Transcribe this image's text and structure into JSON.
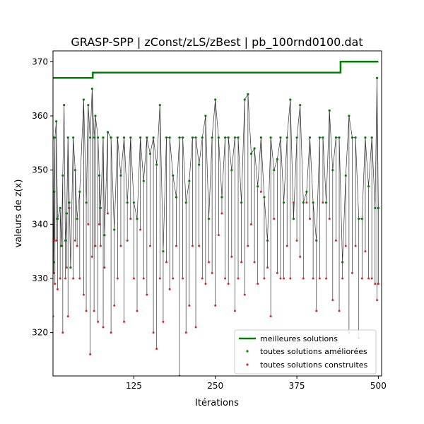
{
  "chart_data": {
    "type": "scatter",
    "title": "GRASP-SPP | zConst/zLS/zBest | pb_100rnd0100.dat",
    "xlabel": "Itérations",
    "ylabel": "valeurs de z(x)",
    "xlim": [
      1,
      505
    ],
    "ylim": [
      312,
      372
    ],
    "xticks": [
      125,
      250,
      375,
      500
    ],
    "yticks": [
      320,
      330,
      340,
      350,
      360,
      370
    ],
    "legend": {
      "position": "bottom-right",
      "entries": [
        {
          "label": "meilleures solutions",
          "color": "#008000",
          "kind": "line"
        },
        {
          "label": "toutes solutions améliorées",
          "color": "#008000",
          "kind": "dot"
        },
        {
          "label": "toutes solutions construites",
          "color": "#d62728",
          "kind": "dot"
        }
      ]
    },
    "series": [
      {
        "name": "meilleures solutions",
        "kind": "step",
        "color": "#008000",
        "x": [
          1,
          62,
          62,
          442,
          442,
          500
        ],
        "y": [
          367,
          367,
          368,
          368,
          370,
          370
        ]
      },
      {
        "name": "toutes solutions améliorées",
        "kind": "dot",
        "color": "#008000",
        "x": [
          1,
          2,
          3,
          4,
          6,
          8,
          12,
          14,
          16,
          18,
          20,
          22,
          24,
          26,
          28,
          32,
          35,
          38,
          42,
          48,
          52,
          55,
          58,
          61,
          64,
          66,
          70,
          72,
          74,
          78,
          80,
          85,
          90,
          95,
          100,
          105,
          110,
          115,
          120,
          125,
          130,
          135,
          140,
          145,
          150,
          155,
          160,
          165,
          170,
          175,
          180,
          185,
          190,
          195,
          200,
          205,
          210,
          215,
          220,
          225,
          230,
          235,
          240,
          245,
          250,
          255,
          260,
          265,
          270,
          275,
          280,
          285,
          290,
          295,
          300,
          305,
          310,
          315,
          320,
          325,
          330,
          335,
          340,
          345,
          350,
          355,
          360,
          365,
          370,
          375,
          380,
          385,
          390,
          395,
          400,
          405,
          410,
          415,
          420,
          425,
          430,
          435,
          440,
          445,
          450,
          455,
          460,
          465,
          470,
          475,
          480,
          485,
          490,
          495,
          498,
          500
        ],
        "y": [
          356,
          333,
          346,
          356,
          359,
          341,
          343,
          336,
          349,
          362,
          337,
          342,
          356,
          344,
          332,
          356,
          350,
          341,
          346,
          363,
          344,
          362,
          356,
          365,
          356,
          360,
          356,
          349,
          343,
          356,
          338,
          357,
          356,
          339,
          356,
          349,
          356,
          344,
          356,
          344,
          341,
          356,
          348,
          356,
          353,
          356,
          351,
          362,
          335,
          356,
          356,
          349,
          345,
          356,
          356,
          344,
          348,
          356,
          356,
          351,
          356,
          360,
          341,
          356,
          363,
          356,
          345,
          356,
          356,
          350,
          356,
          356,
          344,
          363,
          364,
          353,
          354,
          347,
          356,
          345,
          337,
          356,
          350,
          352,
          356,
          344,
          356,
          363,
          341,
          356,
          362,
          344,
          346,
          356,
          344,
          337,
          356,
          356,
          344,
          361,
          350,
          356,
          356,
          333,
          349,
          360,
          356,
          356,
          341,
          341,
          356,
          347,
          356,
          343,
          367,
          343
        ]
      },
      {
        "name": "toutes solutions construites",
        "kind": "dot",
        "color": "#d62728",
        "x": [
          1,
          2,
          3,
          4,
          6,
          8,
          12,
          14,
          16,
          18,
          20,
          22,
          24,
          26,
          28,
          32,
          35,
          38,
          42,
          48,
          52,
          55,
          58,
          61,
          64,
          66,
          70,
          72,
          74,
          78,
          80,
          85,
          90,
          95,
          100,
          105,
          110,
          115,
          120,
          125,
          130,
          135,
          140,
          145,
          150,
          155,
          160,
          165,
          170,
          175,
          180,
          185,
          190,
          195,
          200,
          205,
          210,
          215,
          220,
          225,
          230,
          235,
          240,
          245,
          250,
          255,
          260,
          265,
          270,
          275,
          280,
          285,
          290,
          295,
          300,
          305,
          310,
          315,
          320,
          325,
          330,
          335,
          340,
          345,
          350,
          355,
          360,
          365,
          370,
          375,
          380,
          385,
          390,
          395,
          400,
          405,
          410,
          415,
          420,
          425,
          430,
          435,
          440,
          445,
          450,
          455,
          460,
          465,
          470,
          475,
          480,
          485,
          490,
          495,
          498,
          500
        ],
        "y": [
          323,
          331,
          337,
          329,
          337,
          328,
          330,
          336,
          320,
          362,
          330,
          332,
          323,
          343,
          332,
          330,
          337,
          336,
          330,
          327,
          324,
          340,
          316,
          334,
          324,
          336,
          322,
          340,
          336,
          321,
          332,
          342,
          320,
          325,
          330,
          336,
          322,
          337,
          341,
          330,
          324,
          339,
          330,
          327,
          336,
          320,
          317,
          330,
          322,
          333,
          328,
          330,
          336,
          312,
          330,
          320,
          325,
          336,
          321,
          336,
          330,
          329,
          333,
          331,
          325,
          338,
          342,
          330,
          329,
          334,
          324,
          330,
          333,
          327,
          336,
          340,
          333,
          329,
          346,
          330,
          332,
          323,
          341,
          331,
          330,
          330,
          336,
          330,
          344,
          337,
          334,
          330,
          344,
          341,
          330,
          324,
          330,
          344,
          330,
          341,
          326,
          337,
          324,
          330,
          336,
          320,
          331,
          336,
          319,
          330,
          335,
          330,
          330,
          329,
          326,
          329
        ]
      }
    ]
  }
}
